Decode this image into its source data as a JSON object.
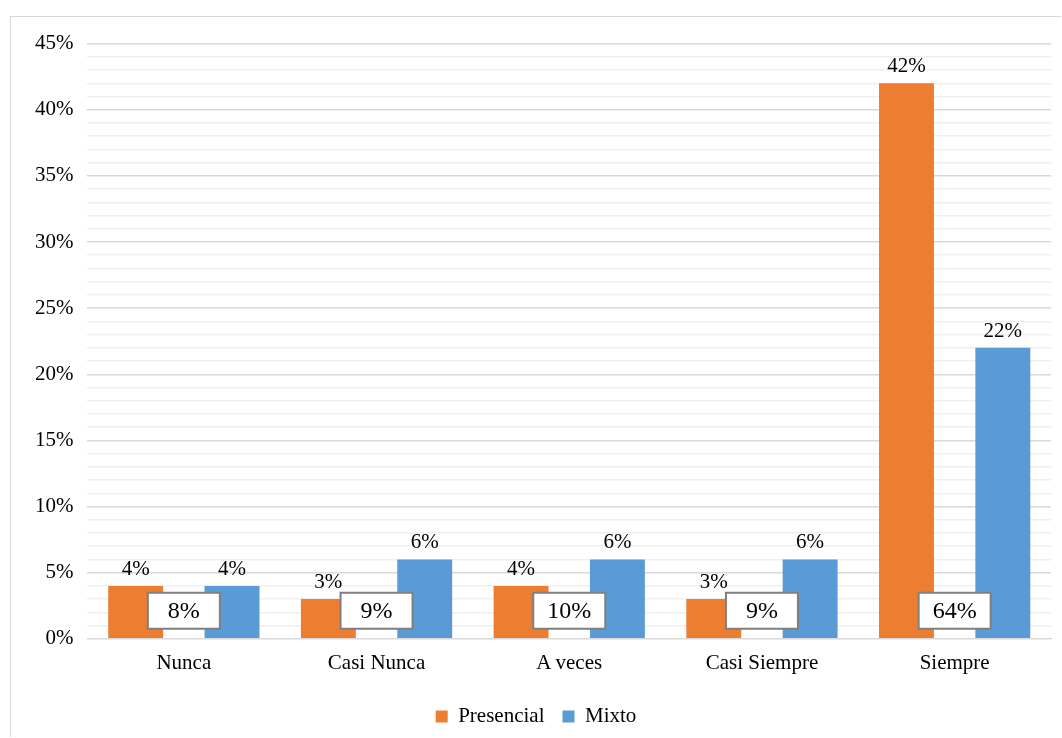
{
  "chart_data": {
    "type": "bar",
    "categories": [
      "Nunca",
      "Casi Nunca",
      "A veces",
      "Casi Siempre",
      "Siempre"
    ],
    "series": [
      {
        "name": "Presencial",
        "color": "#ed7d31",
        "values": [
          4,
          3,
          4,
          3,
          42
        ],
        "value_labels": [
          "4%",
          "3%",
          "4%",
          "3%",
          "42%"
        ]
      },
      {
        "name": "Mixto",
        "color": "#5b9bd5",
        "values": [
          4,
          6,
          6,
          6,
          22
        ],
        "value_labels": [
          "4%",
          "6%",
          "6%",
          "6%",
          "22%"
        ]
      }
    ],
    "totals": [
      "8%",
      "9%",
      "10%",
      "9%",
      "64%"
    ],
    "ylim": [
      0,
      45
    ],
    "yticks": [
      {
        "value": 0,
        "label": "0%"
      },
      {
        "value": 1,
        "label": null
      },
      {
        "value": 2,
        "label": null
      },
      {
        "value": 3,
        "label": null
      },
      {
        "value": 4,
        "label": null
      },
      {
        "value": 5,
        "label": "5%"
      },
      {
        "value": 6,
        "label": null
      },
      {
        "value": 7,
        "label": null
      },
      {
        "value": 8,
        "label": null
      },
      {
        "value": 9,
        "label": null
      },
      {
        "value": 10,
        "label": "10%"
      },
      {
        "value": 11,
        "label": null
      },
      {
        "value": 12,
        "label": null
      },
      {
        "value": 13,
        "label": null
      },
      {
        "value": 14,
        "label": null
      },
      {
        "value": 15,
        "label": "15%"
      },
      {
        "value": 16,
        "label": null
      },
      {
        "value": 17,
        "label": null
      },
      {
        "value": 18,
        "label": null
      },
      {
        "value": 19,
        "label": null
      },
      {
        "value": 20,
        "label": "20%"
      },
      {
        "value": 21,
        "label": null
      },
      {
        "value": 22,
        "label": null
      },
      {
        "value": 23,
        "label": null
      },
      {
        "value": 24,
        "label": null
      },
      {
        "value": 25,
        "label": "25%"
      },
      {
        "value": 26,
        "label": null
      },
      {
        "value": 27,
        "label": null
      },
      {
        "value": 28,
        "label": null
      },
      {
        "value": 29,
        "label": null
      },
      {
        "value": 30,
        "label": "30%"
      },
      {
        "value": 31,
        "label": null
      },
      {
        "value": 32,
        "label": null
      },
      {
        "value": 33,
        "label": null
      },
      {
        "value": 34,
        "label": null
      },
      {
        "value": 35,
        "label": "35%"
      },
      {
        "value": 36,
        "label": null
      },
      {
        "value": 37,
        "label": null
      },
      {
        "value": 38,
        "label": null
      },
      {
        "value": 39,
        "label": null
      },
      {
        "value": 40,
        "label": "40%"
      },
      {
        "value": 41,
        "label": null
      },
      {
        "value": 42,
        "label": null
      },
      {
        "value": 43,
        "label": null
      },
      {
        "value": 44,
        "label": null
      },
      {
        "value": 45,
        "label": "45%"
      }
    ],
    "grid": "y",
    "legend": "bottom"
  }
}
